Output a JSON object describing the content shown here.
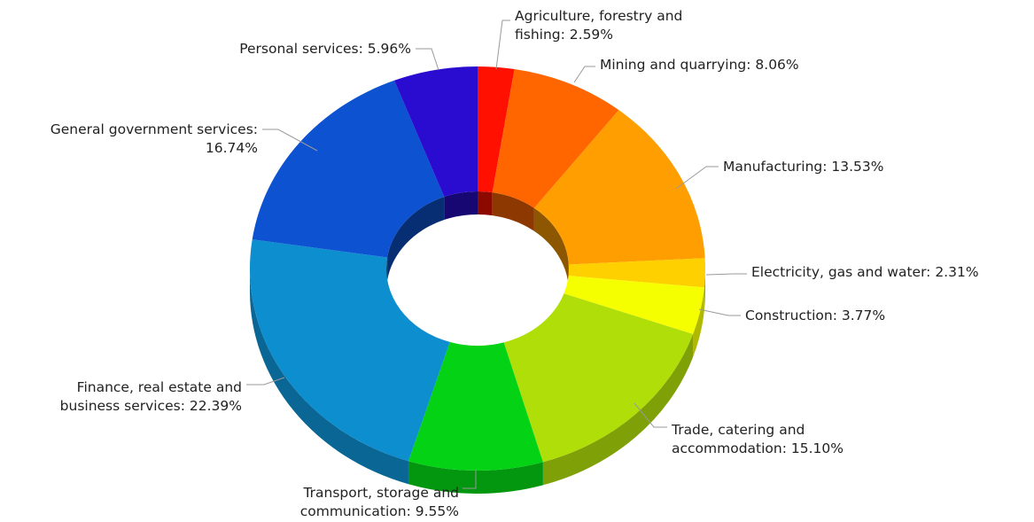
{
  "chart_data": {
    "type": "pie",
    "style": "3d-donut",
    "unit": "%",
    "slices": [
      {
        "name": "Agriculture, forestry and fishing",
        "label_lines": [
          "Agriculture, forestry and",
          "fishing: 2.59%"
        ],
        "value": 2.59,
        "color": "#ff1000"
      },
      {
        "name": "Mining and quarrying",
        "label_lines": [
          "Mining and quarrying: 8.06%"
        ],
        "value": 8.06,
        "color": "#ff6600"
      },
      {
        "name": "Manufacturing",
        "label_lines": [
          "Manufacturing: 13.53%"
        ],
        "value": 13.53,
        "color": "#ff9e00"
      },
      {
        "name": "Electricity, gas and water",
        "label_lines": [
          "Electricity, gas and water: 2.31%"
        ],
        "value": 2.31,
        "color": "#ffd000"
      },
      {
        "name": "Construction",
        "label_lines": [
          "Construction: 3.77%"
        ],
        "value": 3.77,
        "color": "#f6ff00"
      },
      {
        "name": "Trade, catering and accommodation",
        "label_lines": [
          "Trade, catering and",
          "accommodation: 15.10%"
        ],
        "value": 15.1,
        "color": "#b0de09"
      },
      {
        "name": "Transport, storage and communication",
        "label_lines": [
          "Transport, storage and",
          "communication: 9.55%"
        ],
        "value": 9.55,
        "color": "#04d215"
      },
      {
        "name": "Finance, real estate and business services",
        "label_lines": [
          "Finance, real estate and",
          "business services: 22.39%"
        ],
        "value": 22.39,
        "color": "#0d8ecf"
      },
      {
        "name": "General government services",
        "label_lines": [
          "General government services:",
          "16.74%"
        ],
        "value": 16.74,
        "color": "#0d52d1"
      },
      {
        "name": "Personal services",
        "label_lines": [
          "Personal services: 5.96%"
        ],
        "value": 5.96,
        "color": "#2a0cd0"
      }
    ]
  }
}
